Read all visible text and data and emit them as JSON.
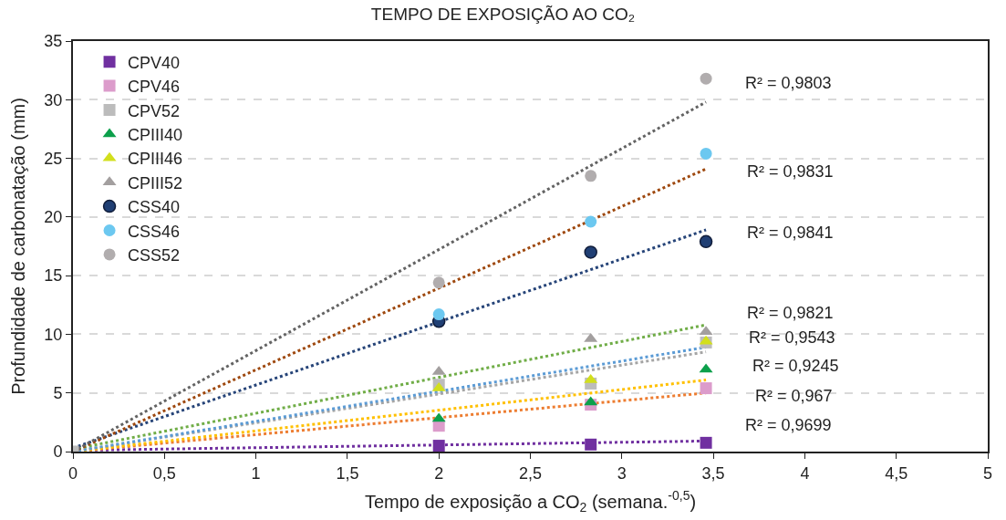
{
  "chart_data": {
    "type": "scatter",
    "title": "TEMPO DE EXPOSIÇÃO AO CO₂",
    "xlabel": "Tempo de exposição a CO$_{2}$ (semana.$^{-0,5}$)",
    "ylabel": "Profundidade de carbonatação (mm)",
    "xlim": [
      0,
      5
    ],
    "xticks": [
      0,
      {
        "value": 0.5,
        "label": "0,5"
      },
      1,
      {
        "value": 1.5,
        "label": "1,5"
      },
      2,
      {
        "value": 2.5,
        "label": "2,5"
      },
      3,
      {
        "value": 3.5,
        "label": "3,5"
      },
      4,
      {
        "value": 4.5,
        "label": "4,5"
      },
      5
    ],
    "ylim": [
      0,
      35
    ],
    "yticks": [
      0,
      5,
      10,
      15,
      20,
      25,
      30,
      35
    ],
    "grid": "y",
    "legend": "top left",
    "series": [
      {
        "name": "CPV40",
        "color": "#7030a0",
        "marker": "square",
        "x": [
          2,
          2.83,
          3.46
        ],
        "values": [
          0.5,
          0.6,
          0.75
        ]
      },
      {
        "name": "CPV46",
        "color": "#dc9ccb",
        "marker": "square",
        "x": [
          2,
          2.83,
          3.46
        ],
        "values": [
          2.2,
          4.0,
          5.4
        ]
      },
      {
        "name": "CPV52",
        "color": "#bcbcbc",
        "marker": "square",
        "x": [
          0,
          2,
          2.83,
          3.46
        ],
        "values": [
          0,
          5.7,
          5.8,
          9.3
        ]
      },
      {
        "name": "CPIII40",
        "color": "#0ca04b",
        "marker": "triangle",
        "x": [
          2,
          2.83,
          3.46
        ],
        "values": [
          2.8,
          4.2,
          7.0
        ]
      },
      {
        "name": "CPIII46",
        "color": "#d2df1d",
        "marker": "triangle",
        "x": [
          2,
          2.83,
          3.46
        ],
        "values": [
          5.4,
          6.1,
          9.4
        ]
      },
      {
        "name": "CPIII52",
        "color": "#a39f9f",
        "marker": "triangle",
        "x": [
          2,
          2.83,
          3.46
        ],
        "values": [
          6.8,
          9.6,
          10.2
        ]
      },
      {
        "name": "CSS40",
        "color": "#203f74",
        "marker": "circle",
        "x": [
          2,
          2.83,
          3.46
        ],
        "values": [
          11.1,
          17.0,
          17.9
        ]
      },
      {
        "name": "CSS46",
        "color": "#6cc8f0",
        "marker": "circle",
        "x": [
          2,
          2.83,
          3.46
        ],
        "values": [
          11.7,
          19.6,
          25.4
        ]
      },
      {
        "name": "CSS52",
        "color": "#b1adae",
        "marker": "circle",
        "x": [
          2,
          2.83,
          3.46
        ],
        "values": [
          14.4,
          23.5,
          31.8
        ]
      },
      {
        "type": "line",
        "line_style": "dotted",
        "color": "#7030a0",
        "x": [
          0,
          3.46
        ],
        "values": [
          0.1,
          0.9
        ]
      },
      {
        "type": "line",
        "line_style": "dotted",
        "color": "#ed7d31",
        "x": [
          0,
          3.46
        ],
        "values": [
          0,
          5.0
        ]
      },
      {
        "type": "line",
        "line_style": "dotted",
        "color": "#a5a5a5",
        "x": [
          0,
          3.46
        ],
        "values": [
          0,
          8.5
        ]
      },
      {
        "type": "line",
        "line_style": "dotted",
        "color": "#ffc000",
        "x": [
          0,
          3.46
        ],
        "values": [
          0,
          6.1
        ]
      },
      {
        "type": "line",
        "line_style": "dotted",
        "color": "#5b9bd5",
        "x": [
          0,
          3.46
        ],
        "values": [
          0,
          8.9
        ]
      },
      {
        "type": "line",
        "line_style": "dotted",
        "color": "#70ad47",
        "x": [
          0,
          3.46
        ],
        "values": [
          0.2,
          10.8
        ]
      },
      {
        "type": "line",
        "line_style": "dotted",
        "color": "#264478",
        "x": [
          0,
          3.46
        ],
        "values": [
          0.3,
          18.9
        ]
      },
      {
        "type": "line",
        "line_style": "dotted",
        "color": "#9e480e",
        "x": [
          0,
          3.46
        ],
        "values": [
          0,
          24.1
        ]
      },
      {
        "type": "line",
        "line_style": "dotted",
        "color": "#636363",
        "x": [
          0,
          3.46
        ],
        "values": [
          0,
          29.8
        ]
      }
    ],
    "annotations": [
      "R² = 0,9803",
      "R² = 0,9831",
      "R² = 0,9841",
      "R² = 0,9821",
      "R² = 0,9543",
      "R² = 0,9245",
      "R² = 0,967",
      "R² = 0,9699"
    ]
  }
}
